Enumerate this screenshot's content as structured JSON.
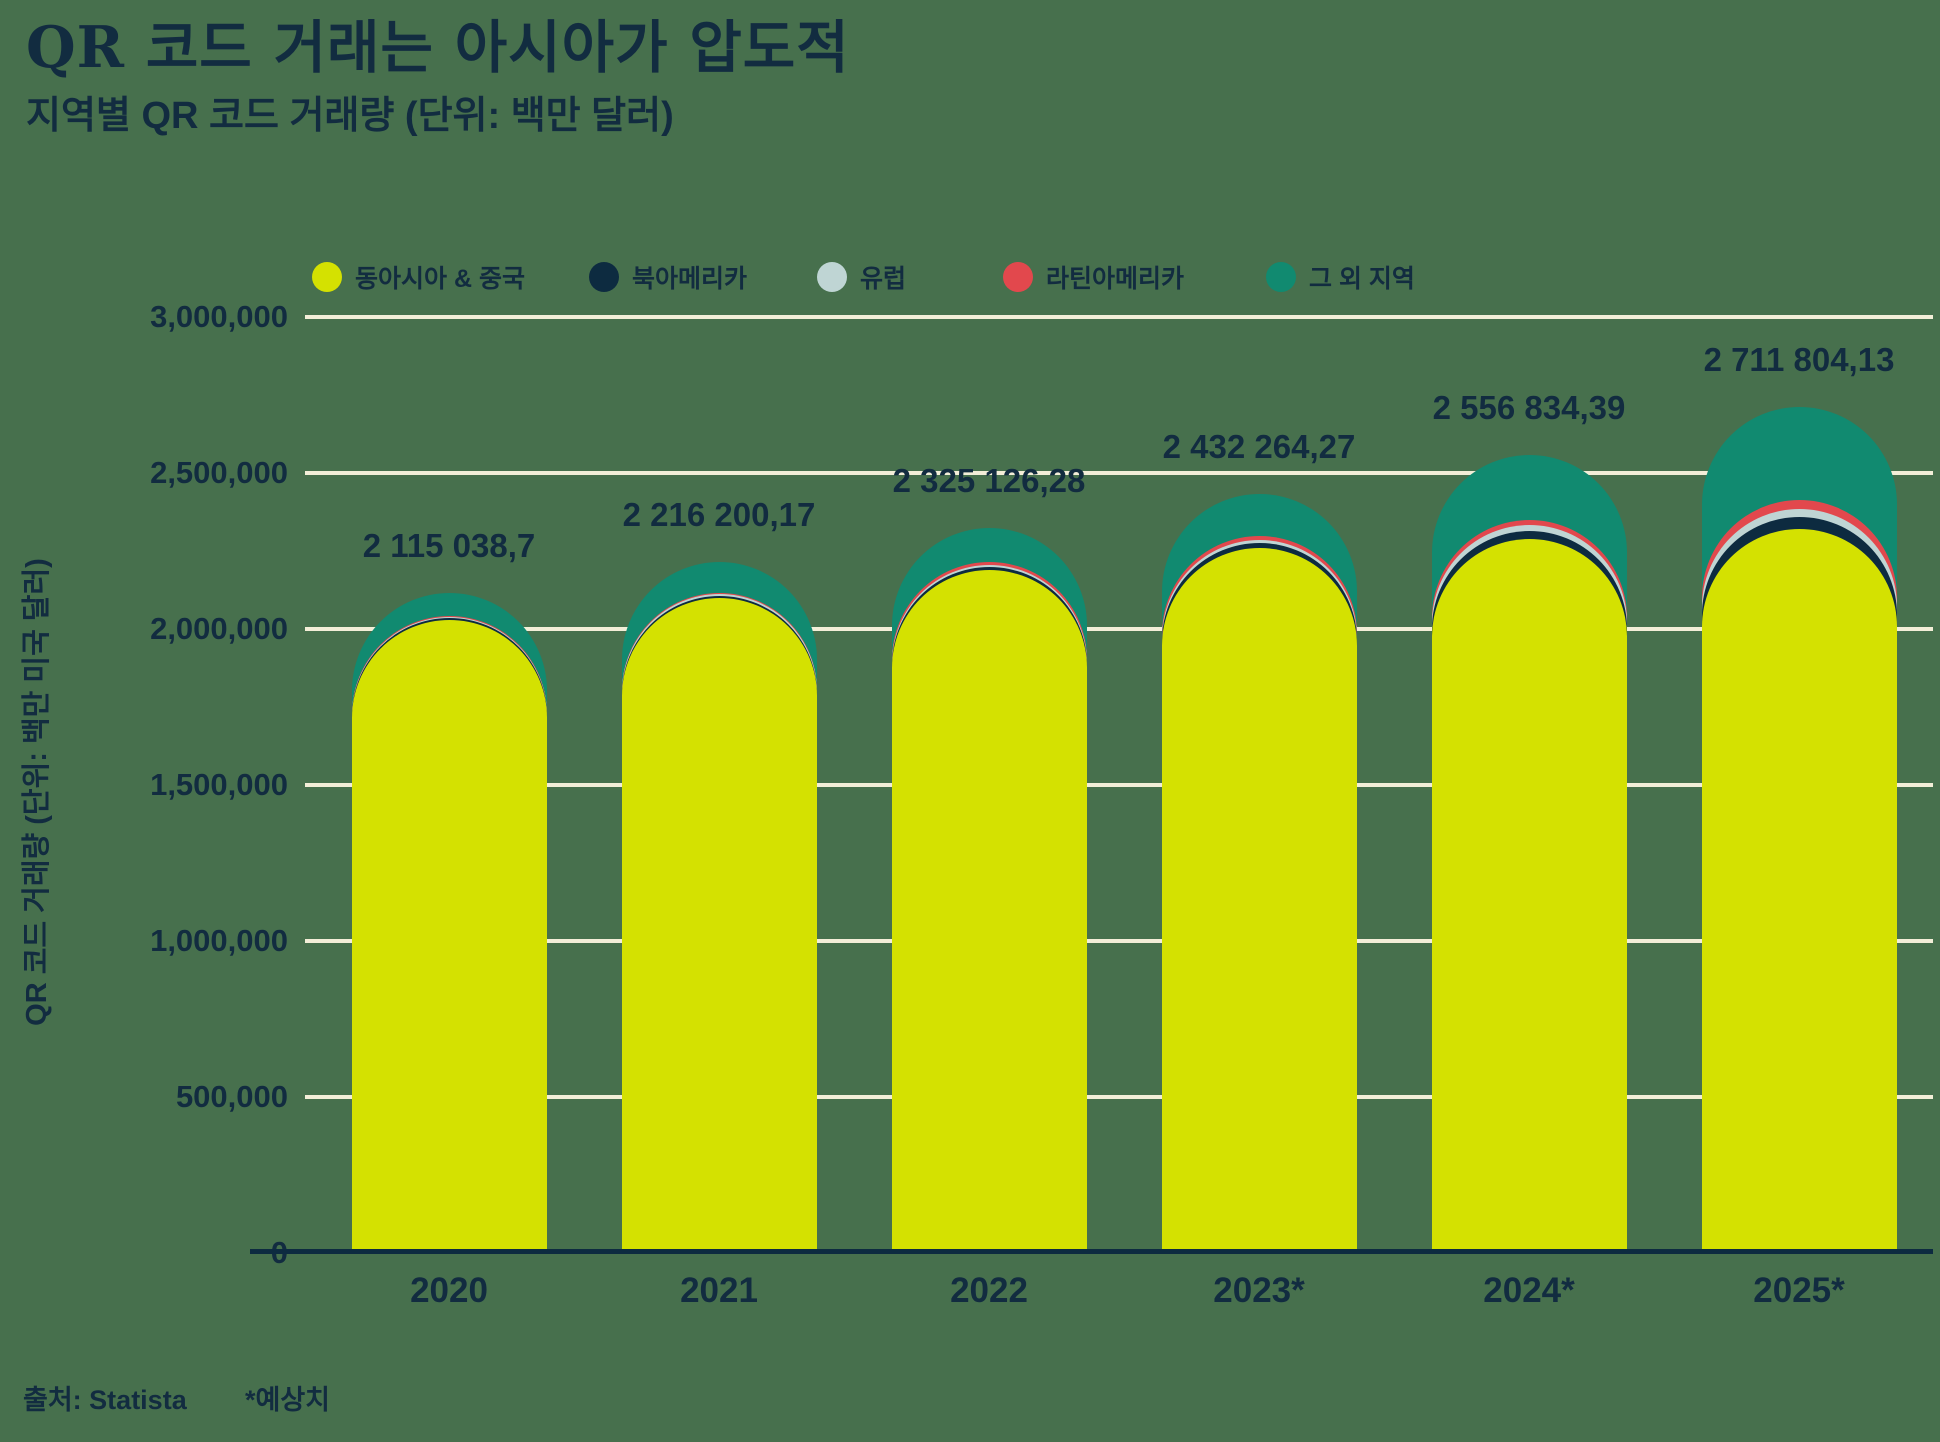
{
  "header": {
    "title": "QR 코드 거래는 아시아가 압도적",
    "subtitle": "지역별 QR 코드 거래량 (단위: 백만 달러)"
  },
  "y_axis_title": "QR 코드 거래량 (단위: 백만 미국 달러)",
  "footer": {
    "source": "출처: Statista",
    "note": "*예상치"
  },
  "colors": {
    "background": "#47704d",
    "ink": "#122c40",
    "gridline": "#f3eed8",
    "axis": "#0d2b40"
  },
  "chart_data": {
    "type": "bar",
    "stacked": true,
    "rounded_tops": true,
    "grid": true,
    "legend_position": "top",
    "title": "QR 코드 거래는 아시아가 압도적",
    "subtitle": "지역별 QR 코드 거래량 (단위: 백만 달러)",
    "ylabel": "QR 코드 거래량 (단위: 백만 미국 달러)",
    "ylim": [
      0,
      3000000
    ],
    "y_ticks": [
      "3,000,000",
      "2,500,000",
      "2,000,000",
      "1,500,000",
      "1,000,000",
      "500,000",
      "0"
    ],
    "categories": [
      "2020",
      "2021",
      "2022",
      "2023*",
      "2024*",
      "2025*"
    ],
    "series": [
      {
        "name": "동아시아 & 중국",
        "color": "#d4e101",
        "values": [
          2030000,
          2100000,
          2190000,
          2260000,
          2290000,
          2320000
        ]
      },
      {
        "name": "북아메리카",
        "color": "#0d2b40",
        "values": [
          5000,
          7000,
          10000,
          15000,
          25000,
          38000
        ]
      },
      {
        "name": "유럽",
        "color": "#bfd5d4",
        "values": [
          3000,
          4000,
          6000,
          10000,
          18000,
          26000
        ]
      },
      {
        "name": "라틴아메리카",
        "color": "#e2484d",
        "values": [
          3000,
          5000,
          8000,
          12000,
          18000,
          30000
        ]
      },
      {
        "name": "그 외 지역",
        "color": "#118a70",
        "values": [
          74038.7,
          100200.17,
          111126.28,
          135264.27,
          205834.39,
          297804.13
        ]
      }
    ],
    "series_values_estimated": true,
    "totals": [
      2115038.7,
      2216200.17,
      2325126.28,
      2432264.27,
      2556834.39,
      2711804.13
    ],
    "total_labels": [
      "2 115 038,7",
      "2 216 200,17",
      "2 325 126,28",
      "2 432 264,27",
      "2 556 834,39",
      "2 711 804,13"
    ]
  }
}
